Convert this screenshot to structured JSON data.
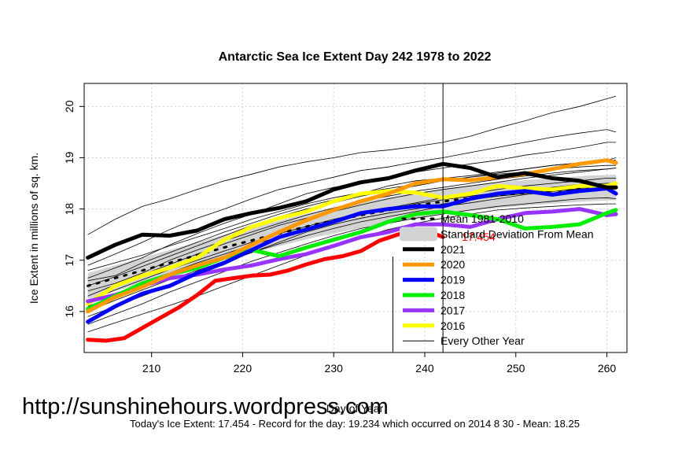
{
  "chart_data": {
    "type": "line",
    "title": "Antarctic Sea Ice Extent Day 242 1978 to 2022",
    "xlabel": "Day of Year",
    "ylabel": "Ice Extent in millions of sq. km.",
    "xlim": [
      202.6,
      262.2
    ],
    "ylim": [
      15.2,
      20.45
    ],
    "x_ticks": [
      210,
      220,
      230,
      240,
      250,
      260
    ],
    "y_ticks": [
      16,
      17,
      18,
      19,
      20
    ],
    "marker_day": 242,
    "marker_day_secondary": 236.5,
    "grid": true,
    "legend_position": "bottom-right",
    "annotation": "17.454",
    "footer": "Today's Ice Extent: 17.454  - Record for the day: 19.234 which occurred on 2014 8 30  - Mean: 18.25",
    "watermark": "http://sunshinehours.wordpress.com",
    "mean_series": {
      "name": "Mean 1981-2010",
      "x": [
        203,
        208,
        213,
        218,
        223,
        228,
        233,
        238,
        243,
        248,
        253,
        258,
        261
      ],
      "y": [
        16.5,
        16.75,
        17.0,
        17.25,
        17.48,
        17.7,
        17.88,
        18.04,
        18.17,
        18.27,
        18.34,
        18.4,
        18.42
      ],
      "std": 0.25
    },
    "series": [
      {
        "name": "2022",
        "color": "#ff0000",
        "x": [
          203,
          205,
          207,
          209,
          211,
          213,
          215,
          217,
          219,
          221,
          223,
          225,
          227,
          229,
          231,
          233,
          235,
          237,
          239,
          241,
          242
        ],
        "y": [
          15.45,
          15.43,
          15.48,
          15.68,
          15.88,
          16.08,
          16.32,
          16.6,
          16.65,
          16.7,
          16.72,
          16.8,
          16.92,
          17.02,
          17.08,
          17.18,
          17.38,
          17.5,
          17.58,
          17.52,
          17.454
        ]
      },
      {
        "name": "2021",
        "color": "#000000",
        "x": [
          203,
          206,
          209,
          212,
          215,
          218,
          221,
          224,
          227,
          230,
          233,
          236,
          239,
          242,
          245,
          248,
          251,
          254,
          257,
          260,
          261
        ],
        "y": [
          17.05,
          17.3,
          17.5,
          17.48,
          17.58,
          17.8,
          17.92,
          18.02,
          18.15,
          18.38,
          18.52,
          18.6,
          18.75,
          18.88,
          18.8,
          18.62,
          18.7,
          18.6,
          18.55,
          18.42,
          18.42
        ]
      },
      {
        "name": "2020",
        "color": "#ff9900",
        "x": [
          203,
          206,
          209,
          212,
          215,
          218,
          221,
          224,
          227,
          230,
          233,
          236,
          239,
          242,
          245,
          248,
          251,
          254,
          257,
          260,
          261
        ],
        "y": [
          16.0,
          16.28,
          16.48,
          16.72,
          16.9,
          17.05,
          17.3,
          17.55,
          17.78,
          17.98,
          18.15,
          18.3,
          18.5,
          18.58,
          18.56,
          18.62,
          18.68,
          18.78,
          18.88,
          18.95,
          18.9
        ]
      },
      {
        "name": "2019",
        "color": "#0000ff",
        "x": [
          203,
          206,
          209,
          212,
          215,
          218,
          221,
          224,
          227,
          230,
          233,
          236,
          239,
          242,
          245,
          248,
          251,
          254,
          257,
          260,
          261
        ],
        "y": [
          15.8,
          16.1,
          16.35,
          16.5,
          16.75,
          16.95,
          17.2,
          17.45,
          17.6,
          17.75,
          17.92,
          18.0,
          18.05,
          18.05,
          18.2,
          18.3,
          18.35,
          18.28,
          18.35,
          18.4,
          18.3
        ]
      },
      {
        "name": "2018",
        "color": "#00ee00",
        "x": [
          203,
          206,
          209,
          212,
          215,
          218,
          221,
          224,
          227,
          230,
          233,
          236,
          239,
          242,
          245,
          248,
          251,
          254,
          257,
          260,
          261
        ],
        "y": [
          16.05,
          16.3,
          16.55,
          16.72,
          16.85,
          17.05,
          17.2,
          17.08,
          17.25,
          17.4,
          17.55,
          17.75,
          17.9,
          17.95,
          17.88,
          17.8,
          17.62,
          17.65,
          17.7,
          17.92,
          17.98
        ]
      },
      {
        "name": "2017",
        "color": "#9933ff",
        "x": [
          203,
          206,
          209,
          212,
          215,
          218,
          221,
          224,
          227,
          230,
          233,
          236,
          239,
          242,
          245,
          248,
          251,
          254,
          257,
          260,
          261
        ],
        "y": [
          16.2,
          16.32,
          16.5,
          16.65,
          16.72,
          16.82,
          16.9,
          17.02,
          17.12,
          17.28,
          17.45,
          17.55,
          17.7,
          17.7,
          17.65,
          17.8,
          17.92,
          17.95,
          18.0,
          17.88,
          17.9
        ]
      },
      {
        "name": "2016",
        "color": "#ffff00",
        "x": [
          203,
          206,
          209,
          212,
          215,
          218,
          221,
          224,
          227,
          230,
          233,
          236,
          239,
          242,
          245,
          248,
          251,
          254,
          257,
          260,
          261
        ],
        "y": [
          16.15,
          16.5,
          16.7,
          16.85,
          17.05,
          17.4,
          17.65,
          17.82,
          17.95,
          18.15,
          18.3,
          18.35,
          18.32,
          18.22,
          18.3,
          18.45,
          18.4,
          18.38,
          18.45,
          18.45,
          18.5
        ]
      }
    ],
    "other_years": {
      "name": "Every Other Year",
      "x": [
        203,
        206,
        209,
        212,
        215,
        218,
        221,
        224,
        227,
        230,
        233,
        236,
        239,
        242,
        245,
        248,
        251,
        254,
        257,
        260,
        261
      ],
      "series": [
        [
          17.5,
          17.8,
          18.05,
          18.2,
          18.38,
          18.55,
          18.68,
          18.82,
          18.92,
          19.0,
          19.1,
          19.15,
          19.22,
          19.3,
          19.42,
          19.58,
          19.72,
          19.88,
          20.0,
          20.15,
          20.2
        ],
        [
          16.9,
          17.12,
          17.35,
          17.6,
          17.82,
          18.0,
          18.2,
          18.38,
          18.5,
          18.62,
          18.75,
          18.82,
          18.92,
          19.0,
          19.1,
          19.2,
          19.3,
          19.4,
          19.48,
          19.55,
          19.5
        ],
        [
          16.65,
          16.85,
          17.05,
          17.3,
          17.52,
          17.72,
          17.9,
          18.1,
          18.3,
          18.42,
          18.52,
          18.62,
          18.72,
          18.8,
          18.88,
          18.95,
          19.05,
          19.12,
          19.2,
          19.3,
          19.3
        ],
        [
          16.5,
          16.68,
          16.88,
          17.08,
          17.28,
          17.48,
          17.68,
          17.85,
          18.0,
          18.12,
          18.25,
          18.35,
          18.45,
          18.55,
          18.62,
          18.7,
          18.78,
          18.85,
          18.9,
          18.95,
          19.0
        ],
        [
          16.3,
          16.52,
          16.72,
          16.92,
          17.12,
          17.32,
          17.5,
          17.68,
          17.82,
          17.95,
          18.08,
          18.2,
          18.3,
          18.38,
          18.45,
          18.52,
          18.6,
          18.66,
          18.72,
          18.78,
          18.8
        ],
        [
          16.2,
          16.42,
          16.62,
          16.82,
          17.0,
          17.18,
          17.35,
          17.52,
          17.66,
          17.8,
          17.92,
          18.02,
          18.12,
          18.22,
          18.3,
          18.38,
          18.45,
          18.5,
          18.55,
          18.6,
          18.6
        ],
        [
          16.0,
          16.22,
          16.42,
          16.62,
          16.8,
          16.98,
          17.15,
          17.32,
          17.48,
          17.62,
          17.75,
          17.85,
          17.95,
          18.05,
          18.12,
          18.2,
          18.28,
          18.34,
          18.4,
          18.45,
          18.45
        ],
        [
          15.75,
          15.95,
          16.15,
          16.38,
          16.58,
          16.78,
          16.98,
          17.15,
          17.32,
          17.48,
          17.62,
          17.72,
          17.82,
          17.9,
          17.98,
          18.05,
          18.1,
          18.15,
          18.2,
          18.22,
          18.2
        ],
        [
          15.6,
          15.78,
          15.95,
          16.12,
          16.3,
          16.5,
          16.7,
          16.9,
          17.1,
          17.28,
          17.45,
          17.6,
          17.72,
          17.82,
          17.9,
          17.98,
          18.02,
          18.05,
          18.08,
          18.1,
          18.1
        ],
        [
          16.8,
          16.95,
          17.1,
          17.28,
          17.45,
          17.62,
          17.8,
          17.95,
          18.1,
          18.22,
          18.32,
          18.4,
          18.48,
          18.55,
          18.62,
          18.68,
          18.72,
          18.78,
          18.82,
          18.85,
          18.85
        ],
        [
          16.4,
          16.55,
          16.75,
          17.0,
          17.2,
          17.38,
          17.55,
          17.72,
          17.88,
          18.02,
          18.15,
          18.25,
          18.35,
          18.42,
          18.5,
          18.58,
          18.64,
          18.7,
          18.75,
          18.78,
          18.8
        ],
        [
          16.1,
          16.3,
          16.55,
          16.75,
          16.95,
          17.12,
          17.3,
          17.45,
          17.6,
          17.75,
          17.88,
          18.0,
          18.1,
          18.18,
          18.25,
          18.32,
          18.38,
          18.42,
          18.48,
          18.5,
          18.5
        ],
        [
          16.6,
          16.7,
          16.95,
          17.15,
          17.35,
          17.55,
          17.72,
          17.9,
          18.05,
          18.18,
          18.3,
          18.45,
          18.55,
          18.6,
          18.65,
          18.72,
          18.78,
          18.85,
          18.9,
          18.95,
          18.95
        ],
        [
          15.9,
          16.1,
          16.3,
          16.5,
          16.72,
          16.95,
          17.15,
          17.35,
          17.55,
          17.7,
          17.82,
          17.92,
          18.0,
          18.1,
          18.18,
          18.25,
          18.3,
          18.35,
          18.38,
          18.42,
          18.4
        ]
      ]
    }
  }
}
